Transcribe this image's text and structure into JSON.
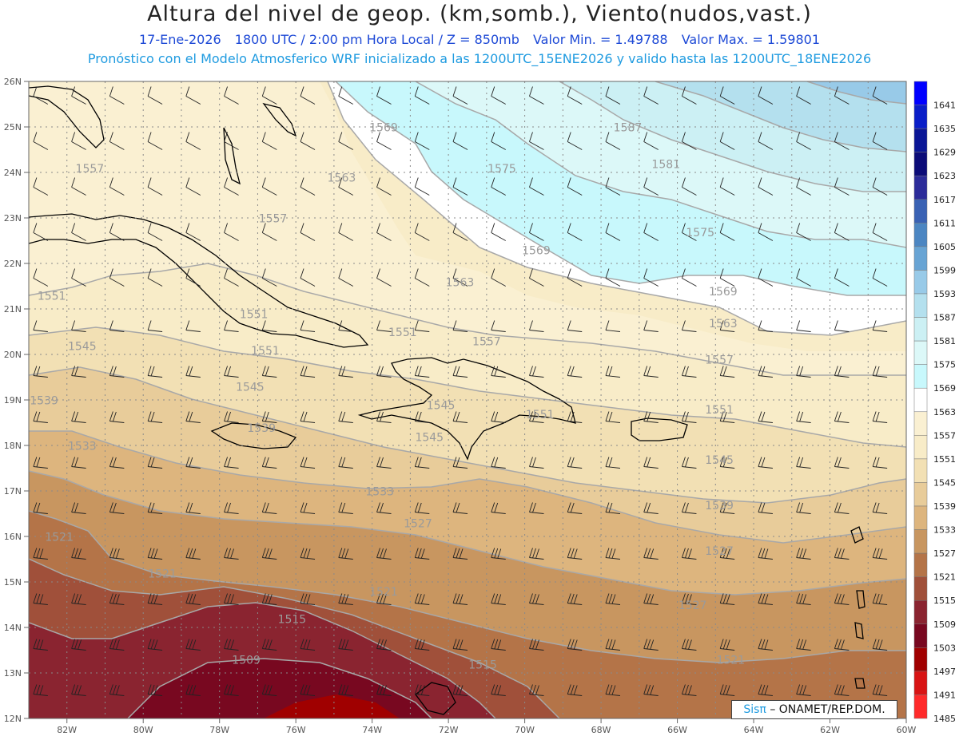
{
  "header": {
    "title": "Altura del nivel de geop. (km,somb.), Viento(nudos,vast.)",
    "date": "17-Ene-2026",
    "time": "1800 UTC / 2:00 pm Hora Local / Z = 850mb",
    "vmin": "Valor Min. = 1.49788",
    "vmax": "Valor Max. = 1.59801",
    "model_line": "Pronóstico con el Modelo Atmosferico WRF inicializado a las 1200UTC_15ENE2026 y valido hasta las  1200UTC_18ENE2026"
  },
  "map": {
    "lon_range": [
      -83,
      -60
    ],
    "lat_range": [
      12,
      26
    ],
    "lat_labels": [
      "26N",
      "25N",
      "24N",
      "23N",
      "22N",
      "21N",
      "20N",
      "19N",
      "18N",
      "17N",
      "16N",
      "15N",
      "14N",
      "13N",
      "12N"
    ],
    "lon_labels": [
      "82W",
      "80W",
      "78W",
      "76W",
      "74W",
      "72W",
      "70W",
      "68W",
      "66W",
      "64W",
      "62W",
      "60W"
    ],
    "contour_labels": [
      {
        "text": "1587",
        "lon": -67.3,
        "lat": 24.9
      },
      {
        "text": "1581",
        "lon": -66.3,
        "lat": 24.1
      },
      {
        "text": "1575",
        "lon": -70.6,
        "lat": 24.0
      },
      {
        "text": "1575",
        "lon": -65.4,
        "lat": 22.6
      },
      {
        "text": "1569",
        "lon": -73.7,
        "lat": 24.9
      },
      {
        "text": "1569",
        "lon": -69.7,
        "lat": 22.2
      },
      {
        "text": "1569",
        "lon": -64.8,
        "lat": 21.3
      },
      {
        "text": "1563",
        "lon": -74.8,
        "lat": 23.8
      },
      {
        "text": "1563",
        "lon": -71.7,
        "lat": 21.5
      },
      {
        "text": "1563",
        "lon": -64.8,
        "lat": 20.6
      },
      {
        "text": "1557",
        "lon": -81.4,
        "lat": 24.0
      },
      {
        "text": "1557",
        "lon": -76.6,
        "lat": 22.9
      },
      {
        "text": "1557",
        "lon": -71.0,
        "lat": 20.2
      },
      {
        "text": "1557",
        "lon": -64.9,
        "lat": 19.8
      },
      {
        "text": "1551",
        "lon": -82.4,
        "lat": 21.2
      },
      {
        "text": "1551",
        "lon": -77.1,
        "lat": 20.8
      },
      {
        "text": "1551",
        "lon": -76.8,
        "lat": 20.0
      },
      {
        "text": "1551",
        "lon": -73.2,
        "lat": 20.4
      },
      {
        "text": "1551",
        "lon": -69.6,
        "lat": 18.6
      },
      {
        "text": "1551",
        "lon": -64.9,
        "lat": 18.7
      },
      {
        "text": "1545",
        "lon": -81.6,
        "lat": 20.1
      },
      {
        "text": "1545",
        "lon": -77.2,
        "lat": 19.2
      },
      {
        "text": "1545",
        "lon": -72.2,
        "lat": 18.8
      },
      {
        "text": "1545",
        "lon": -72.5,
        "lat": 18.1
      },
      {
        "text": "1545",
        "lon": -64.9,
        "lat": 17.6
      },
      {
        "text": "1539",
        "lon": -82.6,
        "lat": 18.9
      },
      {
        "text": "1539",
        "lon": -76.9,
        "lat": 18.3
      },
      {
        "text": "1539",
        "lon": -64.9,
        "lat": 16.6
      },
      {
        "text": "1533",
        "lon": -81.6,
        "lat": 17.9
      },
      {
        "text": "1533",
        "lon": -73.8,
        "lat": 16.9
      },
      {
        "text": "1527",
        "lon": -72.8,
        "lat": 16.2
      },
      {
        "text": "1527",
        "lon": -64.9,
        "lat": 15.6
      },
      {
        "text": "1527",
        "lon": -65.6,
        "lat": 14.4
      },
      {
        "text": "1521",
        "lon": -82.2,
        "lat": 15.9
      },
      {
        "text": "1521",
        "lon": -79.5,
        "lat": 15.1
      },
      {
        "text": "1521",
        "lon": -73.7,
        "lat": 14.7
      },
      {
        "text": "1521",
        "lon": -64.6,
        "lat": 13.2
      },
      {
        "text": "1515",
        "lon": -76.1,
        "lat": 14.1
      },
      {
        "text": "1515",
        "lon": -71.1,
        "lat": 13.1
      },
      {
        "text": "1509",
        "lon": -77.3,
        "lat": 13.2
      }
    ]
  },
  "colorbar": {
    "levels": [
      "1641",
      "1635",
      "1629",
      "1623",
      "1617",
      "1611",
      "1605",
      "1599",
      "1593",
      "1587",
      "1581",
      "1575",
      "1569",
      "1563",
      "1557",
      "1551",
      "1545",
      "1539",
      "1533",
      "1527",
      "1521",
      "1515",
      "1509",
      "1503",
      "1497",
      "1491",
      "1485"
    ],
    "colors": [
      "#0000ff",
      "#0a1ec8",
      "#0a1696",
      "#0c0c78",
      "#2c2c9a",
      "#3a62b4",
      "#4c86c2",
      "#68a4d4",
      "#98cae8",
      "#b4e0ee",
      "#ccf0f4",
      "#dcf8f8",
      "#c8f8fc",
      "#ffffff",
      "#faf0d2",
      "#f8ecc8",
      "#f2e0b4",
      "#e8cc9a",
      "#ddb57e",
      "#c89660",
      "#b47448",
      "#a0503a",
      "#8a2430",
      "#780820",
      "#a00000",
      "#d81414",
      "#ff2a2a"
    ]
  },
  "credit": {
    "sis": "Sisπ",
    "org": "– ONAMET/REP.DOM."
  }
}
